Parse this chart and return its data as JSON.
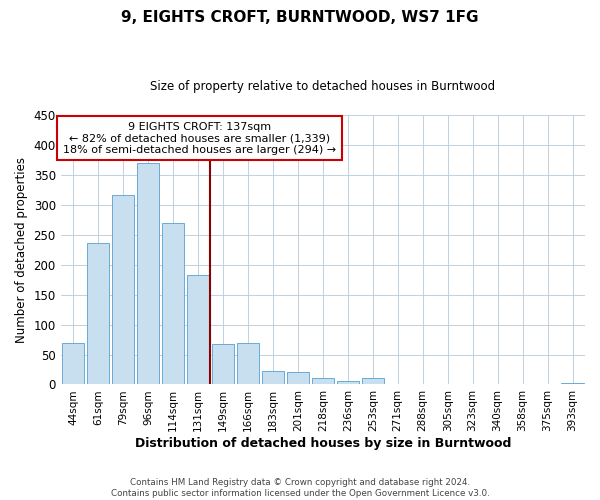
{
  "title": "9, EIGHTS CROFT, BURNTWOOD, WS7 1FG",
  "subtitle": "Size of property relative to detached houses in Burntwood",
  "xlabel": "Distribution of detached houses by size in Burntwood",
  "ylabel": "Number of detached properties",
  "bar_color": "#c8dff0",
  "bar_edge_color": "#6aaad4",
  "bin_labels": [
    "44sqm",
    "61sqm",
    "79sqm",
    "96sqm",
    "114sqm",
    "131sqm",
    "149sqm",
    "166sqm",
    "183sqm",
    "201sqm",
    "218sqm",
    "236sqm",
    "253sqm",
    "271sqm",
    "288sqm",
    "305sqm",
    "323sqm",
    "340sqm",
    "358sqm",
    "375sqm",
    "393sqm"
  ],
  "bar_heights": [
    70,
    236,
    316,
    370,
    270,
    183,
    68,
    70,
    23,
    21,
    11,
    5,
    11,
    0,
    0,
    0,
    0,
    0,
    0,
    0,
    2
  ],
  "property_bin_index": 5,
  "vline_color": "#8b0000",
  "annotation_title": "9 EIGHTS CROFT: 137sqm",
  "annotation_line1": "← 82% of detached houses are smaller (1,339)",
  "annotation_line2": "18% of semi-detached houses are larger (294) →",
  "annotation_box_color": "#ffffff",
  "annotation_box_edge": "#cc0000",
  "ylim": [
    0,
    450
  ],
  "yticks": [
    0,
    50,
    100,
    150,
    200,
    250,
    300,
    350,
    400,
    450
  ],
  "footer_line1": "Contains HM Land Registry data © Crown copyright and database right 2024.",
  "footer_line2": "Contains public sector information licensed under the Open Government Licence v3.0.",
  "background_color": "#ffffff",
  "grid_color": "#c0d0e0"
}
